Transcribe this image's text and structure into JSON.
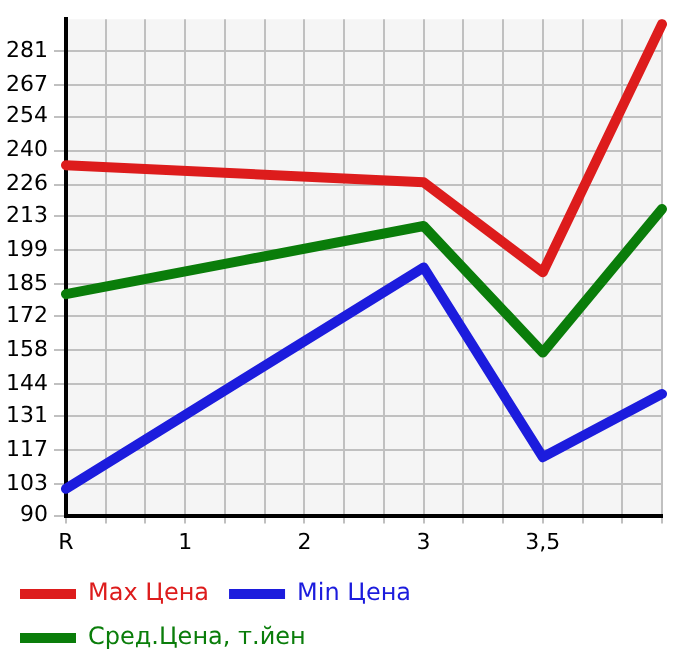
{
  "chart_data": {
    "type": "line",
    "categories": [
      "R",
      null,
      null,
      "1",
      null,
      null,
      "2",
      null,
      null,
      "3",
      null,
      null,
      "3,5",
      null,
      null,
      null
    ],
    "series": [
      {
        "name": "Max Цена",
        "color": "#dd1c1c",
        "values": [
          234,
          null,
          null,
          null,
          null,
          null,
          null,
          null,
          null,
          227,
          null,
          null,
          190,
          null,
          null,
          292
        ]
      },
      {
        "name": "Min Цена",
        "color": "#1c1cdd",
        "values": [
          101,
          null,
          null,
          null,
          null,
          null,
          null,
          null,
          null,
          192,
          null,
          null,
          114,
          null,
          null,
          140
        ]
      },
      {
        "name": "Сред.Цена, т.йен",
        "color": "#0a7d0a",
        "values": [
          181,
          null,
          null,
          null,
          null,
          null,
          null,
          null,
          null,
          209,
          null,
          null,
          157,
          null,
          null,
          216
        ]
      }
    ],
    "ylim": [
      90,
      294
    ],
    "yticks": [
      90,
      103,
      117,
      131,
      144,
      158,
      172,
      185,
      199,
      213,
      226,
      240,
      254,
      267,
      281
    ],
    "grid": true,
    "legend": "bottom",
    "marker": "none",
    "line_style": "solid"
  }
}
